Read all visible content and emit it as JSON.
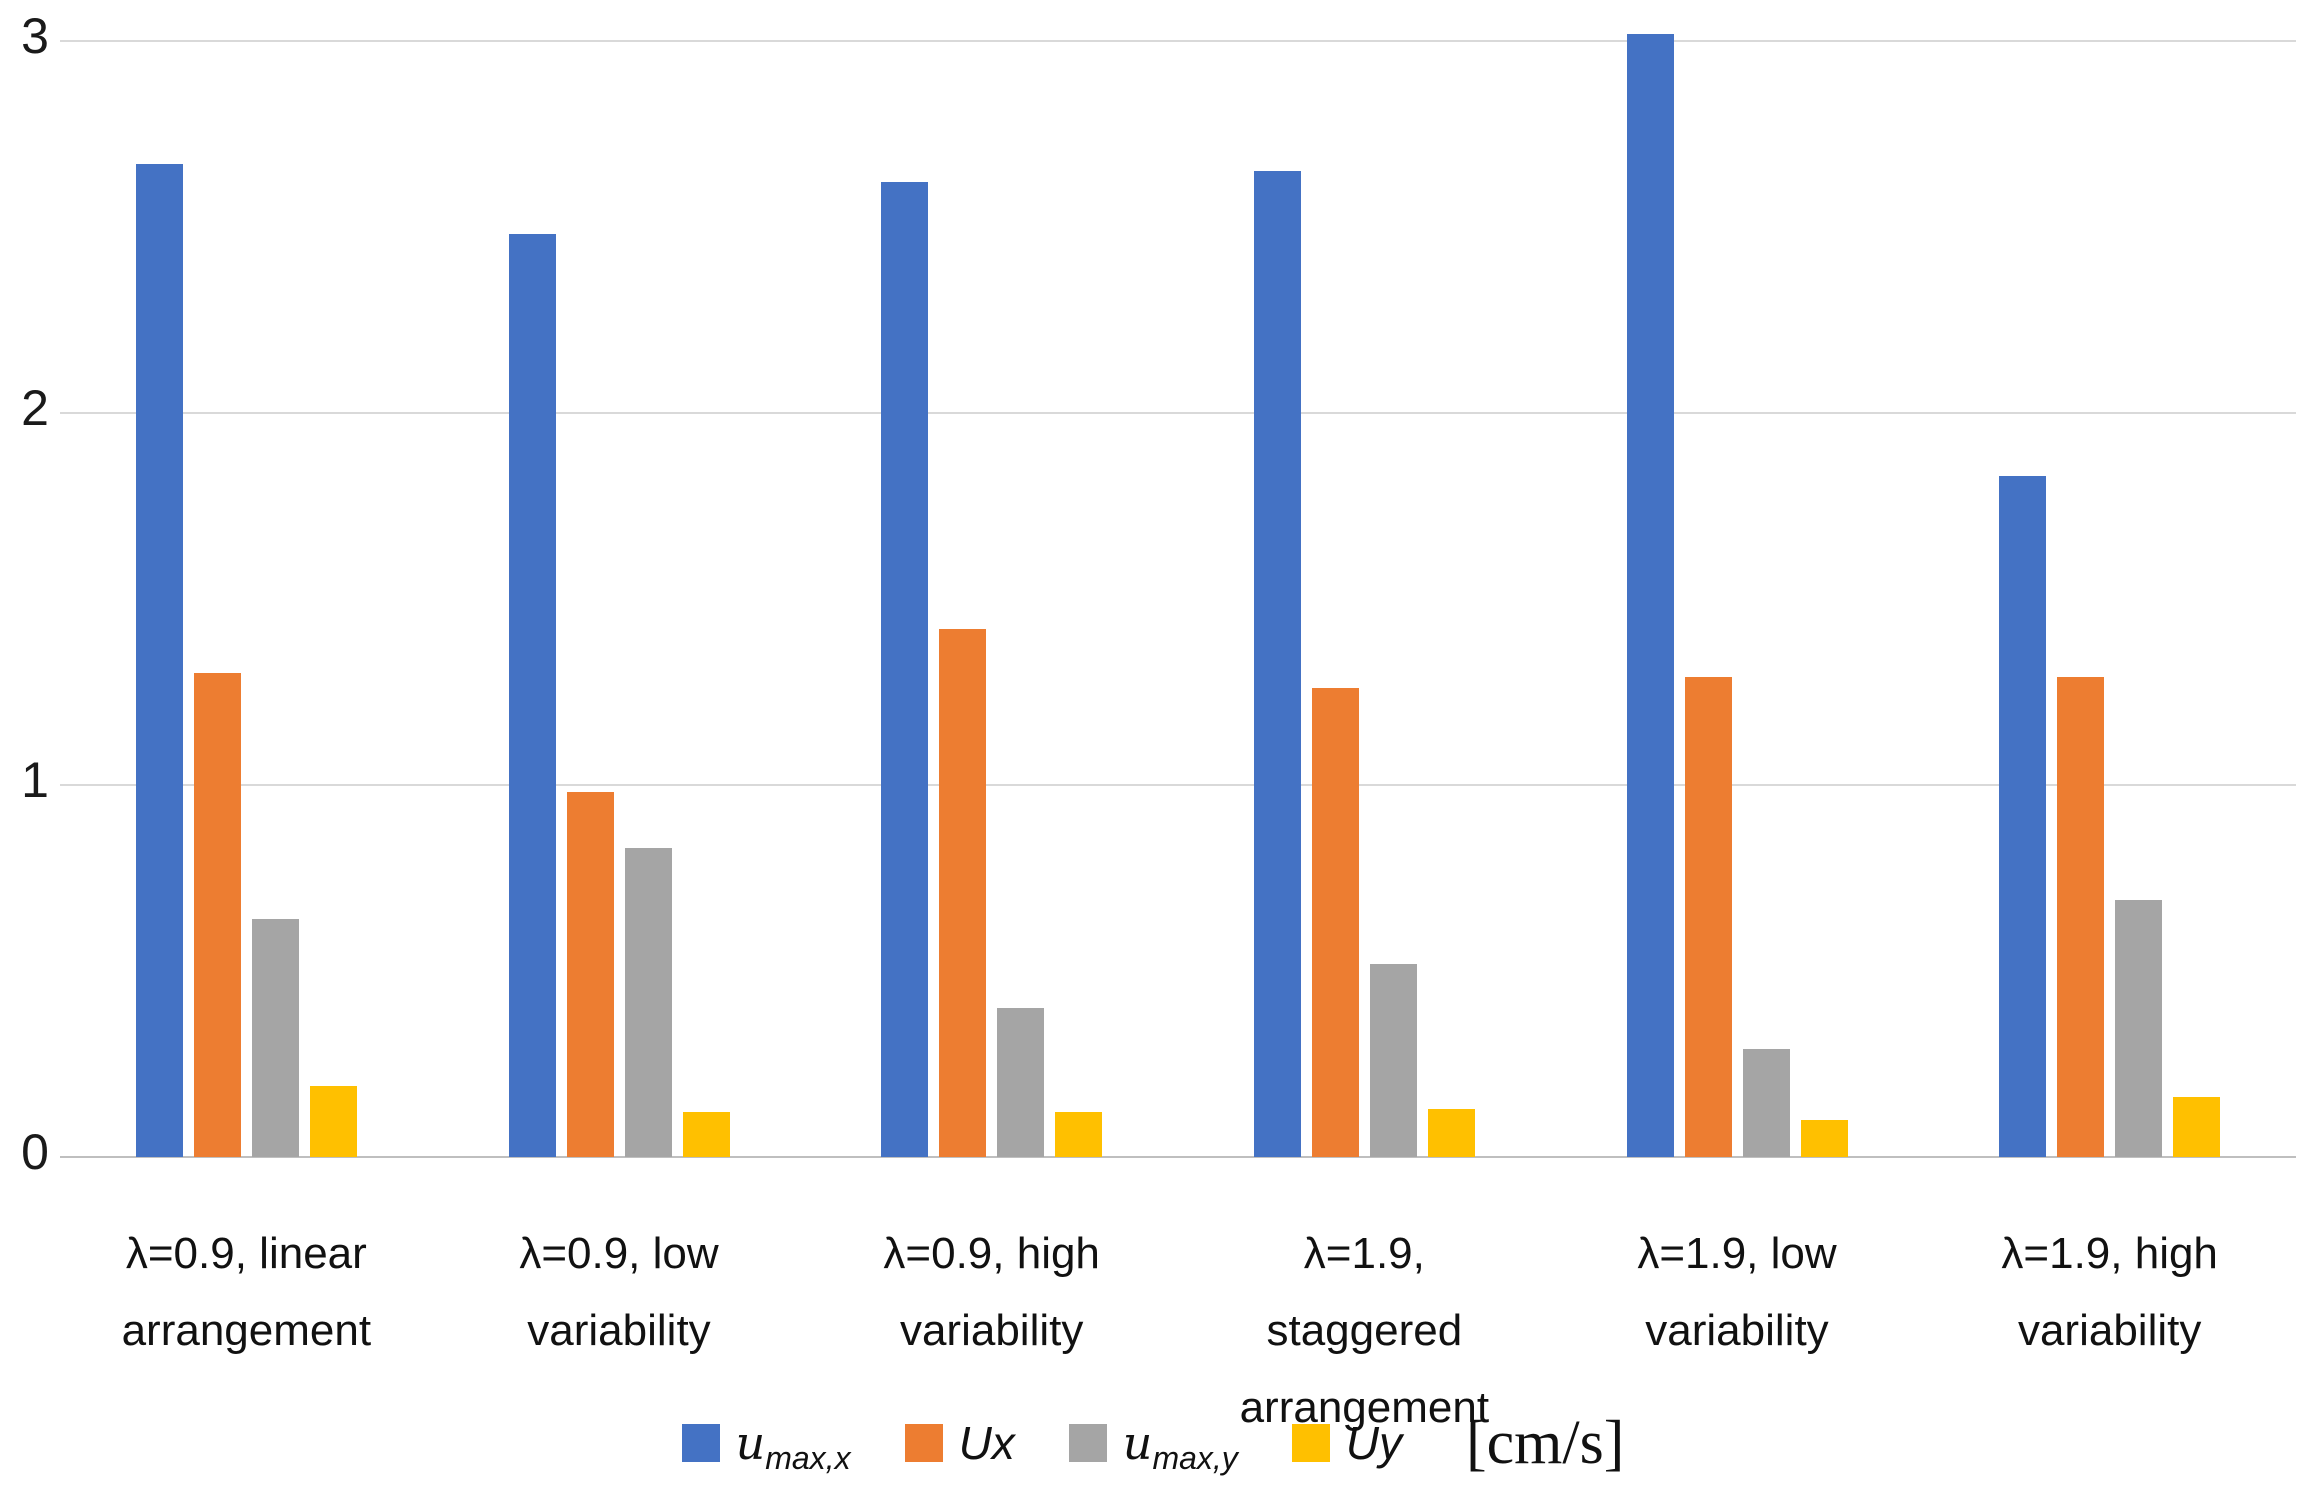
{
  "chart_data": {
    "type": "bar",
    "title": "",
    "unit_label": "[cm/s]",
    "xlabel": "",
    "ylabel": "",
    "ylim": [
      0,
      3
    ],
    "yticks": [
      "0",
      "1",
      "2",
      "3"
    ],
    "grid": "horizontal",
    "legend_position": "bottom",
    "categories": [
      "λ=0.9, linear arrangement",
      "λ=0.9, low variability",
      "λ=0.9, high variability",
      "λ=1.9, staggered arrangement",
      "λ=1.9, low variability",
      "λ=1.9, high variability"
    ],
    "category_lines": [
      [
        "λ=0.9, linear",
        "arrangement"
      ],
      [
        "λ=0.9, low",
        "variability"
      ],
      [
        "λ=0.9, high",
        "variability"
      ],
      [
        "λ=1.9,",
        "staggered",
        "arrangement"
      ],
      [
        "λ=1.9, low",
        "variability"
      ],
      [
        "λ=1.9, high",
        "variability"
      ]
    ],
    "series": [
      {
        "name": "u_max,x",
        "label_base": "u",
        "label_sub": "max,x",
        "label_style": "script-sub",
        "color": "#4472C4",
        "values": [
          2.67,
          2.48,
          2.62,
          2.65,
          3.02,
          1.83
        ]
      },
      {
        "name": "Ux",
        "label_base": "Ux",
        "label_sub": "",
        "label_style": "italic",
        "color": "#ED7D31",
        "values": [
          1.3,
          0.98,
          1.42,
          1.26,
          1.29,
          1.29
        ]
      },
      {
        "name": "u_max,y",
        "label_base": "u",
        "label_sub": "max,y",
        "label_style": "script-sub",
        "color": "#A5A5A5",
        "values": [
          0.64,
          0.83,
          0.4,
          0.52,
          0.29,
          0.69
        ]
      },
      {
        "name": "Uy",
        "label_base": "Uy",
        "label_sub": "",
        "label_style": "italic",
        "color": "#FFC000",
        "values": [
          0.19,
          0.12,
          0.12,
          0.13,
          0.1,
          0.16
        ]
      }
    ]
  },
  "colors": {
    "gridline": "#d9d9d9",
    "axisline": "#bfbfbf",
    "text": "#111111",
    "background": "#ffffff"
  }
}
